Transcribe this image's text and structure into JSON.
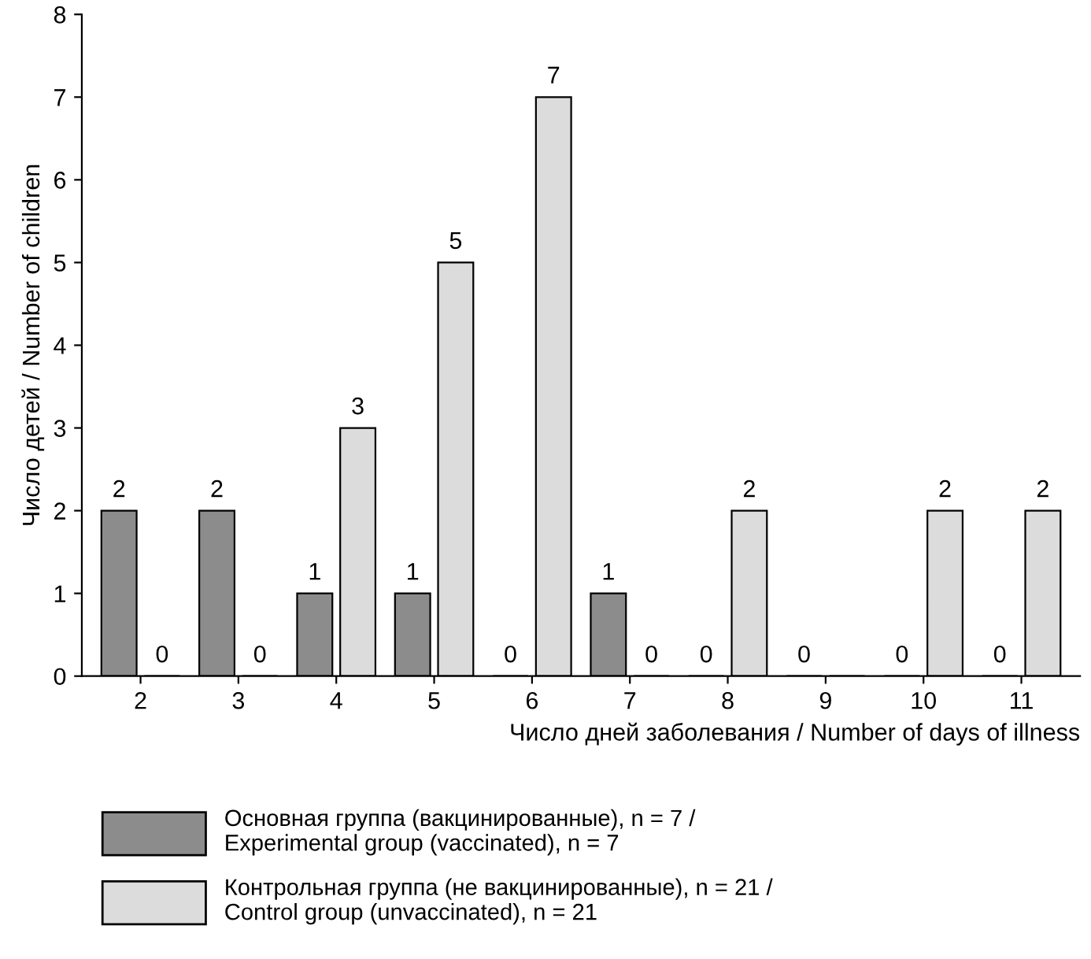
{
  "chart_data": {
    "type": "bar",
    "xlabel": "Число дней заболевания / Number of days of illness",
    "ylabel": "Число детей / Number of children",
    "categories": [
      "2",
      "3",
      "4",
      "5",
      "6",
      "7",
      "8",
      "9",
      "10",
      "11"
    ],
    "series": [
      {
        "name": "Основная группа (вакцинированные), n = 7 /\nExperimental group (vaccinated), n = 7",
        "color": "#8c8c8c",
        "values": [
          2,
          2,
          1,
          1,
          0,
          1,
          0,
          0,
          0,
          0
        ],
        "value_labels": [
          "2",
          "2",
          "1",
          "1",
          "0",
          "1",
          "0",
          "0",
          "0",
          "0"
        ]
      },
      {
        "name": "Контрольная группа (не вакцинированные), n = 21 /\nControl group (unvaccinated), n = 21",
        "color": "#dcdcdc",
        "values": [
          0,
          0,
          3,
          5,
          7,
          0,
          2,
          0,
          2,
          2
        ],
        "value_labels": [
          "0",
          "0",
          "3",
          "5",
          "7",
          "0",
          "2",
          null,
          "2",
          "2"
        ]
      }
    ],
    "ylim": [
      0,
      8
    ],
    "yticks": [
      0,
      1,
      2,
      3,
      4,
      5,
      6,
      7,
      8
    ],
    "grid": false,
    "legend": "bottom"
  }
}
